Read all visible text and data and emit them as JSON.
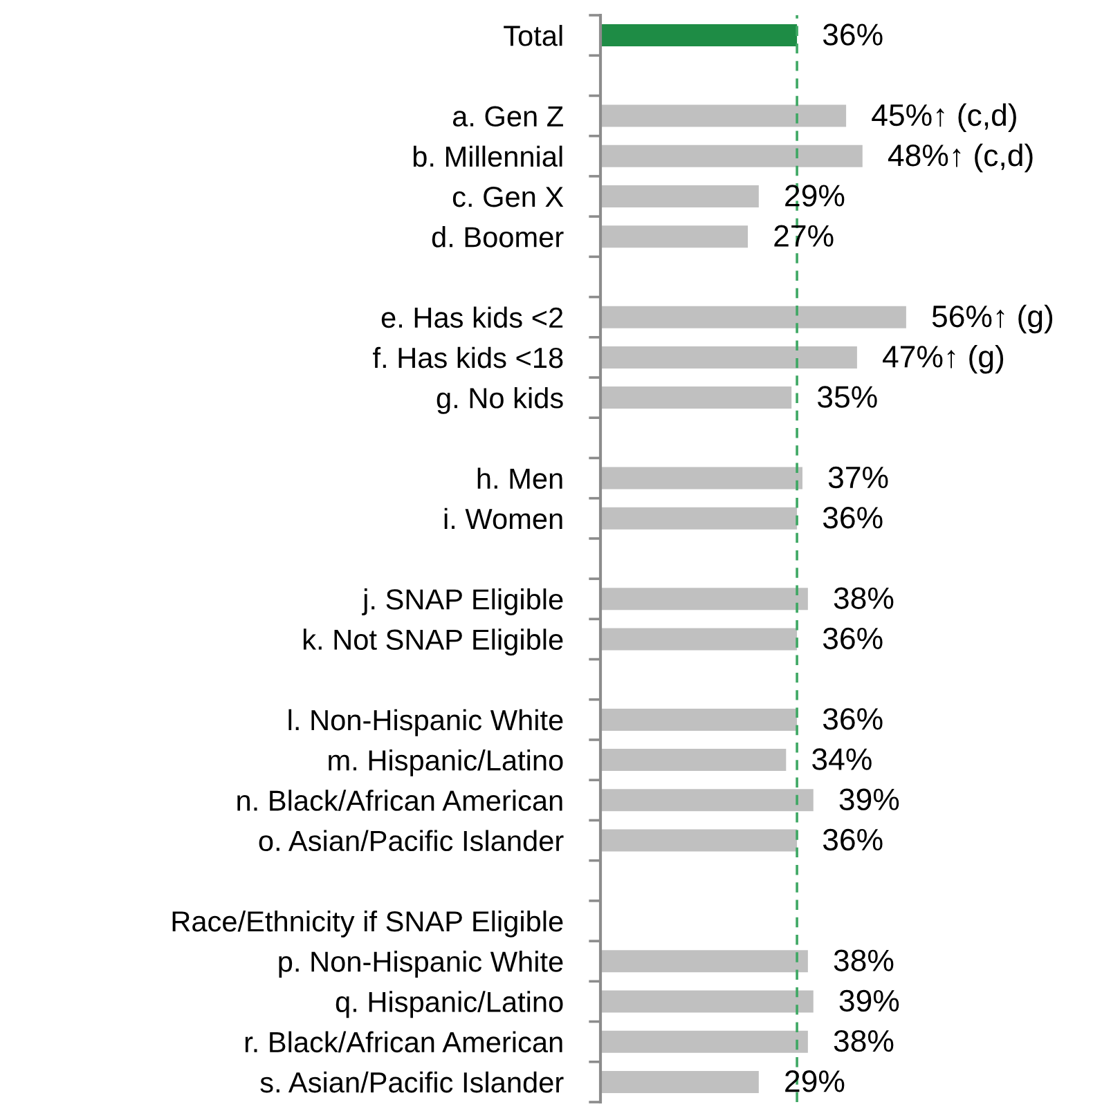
{
  "chart_data": {
    "type": "bar",
    "orientation": "horizontal",
    "categories": [
      "Total",
      null,
      "a. Gen Z",
      "b. Millennial",
      "c. Gen X",
      "d. Boomer",
      null,
      "e. Has kids <2",
      "f. Has kids <18",
      "g. No kids",
      null,
      "h. Men",
      "i. Women",
      null,
      "j. SNAP Eligible",
      "k. Not SNAP Eligible",
      null,
      "l. Non-Hispanic White",
      "m. Hispanic/Latino",
      "n. Black/African American",
      "o. Asian/Pacific Islander",
      null,
      "Race/Ethnicity if SNAP Eligible",
      "p. Non-Hispanic White",
      "q. Hispanic/Latino",
      "r. Black/African American",
      "s. Asian/Pacific Islander"
    ],
    "values": [
      36,
      null,
      45,
      48,
      29,
      27,
      null,
      56,
      47,
      35,
      null,
      37,
      36,
      null,
      38,
      36,
      null,
      36,
      34,
      39,
      36,
      null,
      null,
      38,
      39,
      38,
      29
    ],
    "value_labels": [
      "36%",
      null,
      "45%↑ (c,d)",
      "48%↑ (c,d)",
      "29%",
      "27%",
      null,
      "56%↑ (g)",
      "47%↑ (g)",
      "35%",
      null,
      "37%",
      "36%",
      null,
      "38%",
      "36%",
      null,
      "36%",
      "34%",
      "39%",
      "36%",
      null,
      null,
      "38%",
      "39%",
      "38%",
      "29%"
    ],
    "colors": [
      "#1e8c45",
      null,
      "#c0c0c0",
      "#c0c0c0",
      "#c0c0c0",
      "#c0c0c0",
      null,
      "#c0c0c0",
      "#c0c0c0",
      "#c0c0c0",
      null,
      "#c0c0c0",
      "#c0c0c0",
      null,
      "#c0c0c0",
      "#c0c0c0",
      null,
      "#c0c0c0",
      "#c0c0c0",
      "#c0c0c0",
      "#c0c0c0",
      null,
      null,
      "#c0c0c0",
      "#c0c0c0",
      "#c0c0c0",
      "#c0c0c0"
    ],
    "ref_lines": [
      {
        "axis": "x",
        "value": 36,
        "color": "#3fa864",
        "line_style": "dashed"
      }
    ],
    "tick_labels": "y"
  }
}
